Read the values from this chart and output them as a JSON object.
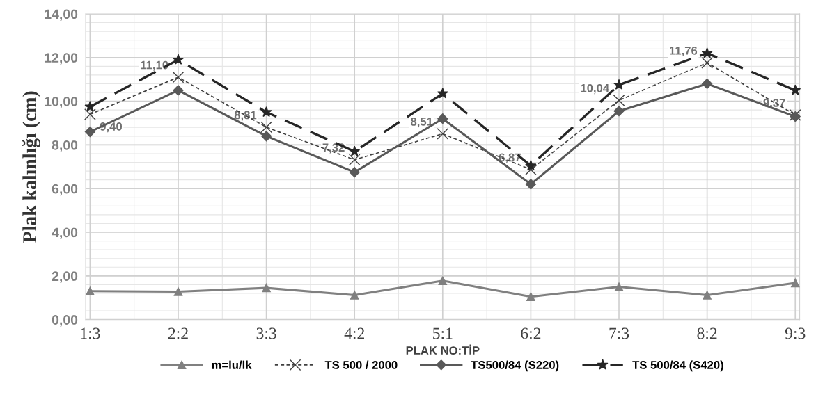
{
  "chart_data": {
    "type": "line",
    "xlabel": "PLAK NO:TİP",
    "ylabel": "Plak kalınlığı (cm)",
    "categories": [
      "1:3",
      "2:2",
      "3:3",
      "4:2",
      "5:1",
      "6:2",
      "7:3",
      "8:2",
      "9:3"
    ],
    "series": [
      {
        "name": "m=lu/lk",
        "color": "#808080",
        "marker": "triangle",
        "line_style": "solid",
        "values": [
          1.3,
          1.28,
          1.45,
          1.12,
          1.78,
          1.05,
          1.5,
          1.12,
          1.68
        ]
      },
      {
        "name": "TS 500 / 2000",
        "color": "#404040",
        "marker": "cross",
        "line_style": "dotted",
        "values": [
          9.4,
          11.1,
          8.81,
          7.32,
          8.51,
          6.87,
          10.04,
          11.76,
          9.37
        ],
        "value_labels": [
          "9,40",
          "11,10",
          "8,81",
          "7,32",
          "8,51",
          "6,87",
          "10,04",
          "11,76",
          "9,37"
        ]
      },
      {
        "name": "TS500/84 (S220)",
        "color": "#595959",
        "marker": "diamond",
        "line_style": "solid",
        "values": [
          8.6,
          10.5,
          8.4,
          6.75,
          9.2,
          6.2,
          9.55,
          10.8,
          9.3
        ]
      },
      {
        "name": "TS 500/84 (S420)",
        "color": "#262626",
        "marker": "star",
        "line_style": "dashed",
        "values": [
          9.75,
          11.9,
          9.5,
          7.7,
          10.35,
          7.05,
          10.75,
          12.2,
          10.5
        ]
      }
    ],
    "ylim": [
      0,
      14
    ],
    "yticks": [
      {
        "value": 0,
        "label": "0,00"
      },
      {
        "value": 2,
        "label": "2,00"
      },
      {
        "value": 4,
        "label": "4,00"
      },
      {
        "value": 6,
        "label": "6,00"
      },
      {
        "value": 8,
        "label": "8,00"
      },
      {
        "value": 10,
        "label": "10,00"
      },
      {
        "value": 12,
        "label": "12,00"
      },
      {
        "value": 14,
        "label": "14,00"
      }
    ],
    "grid": true,
    "legend": "bottom"
  }
}
